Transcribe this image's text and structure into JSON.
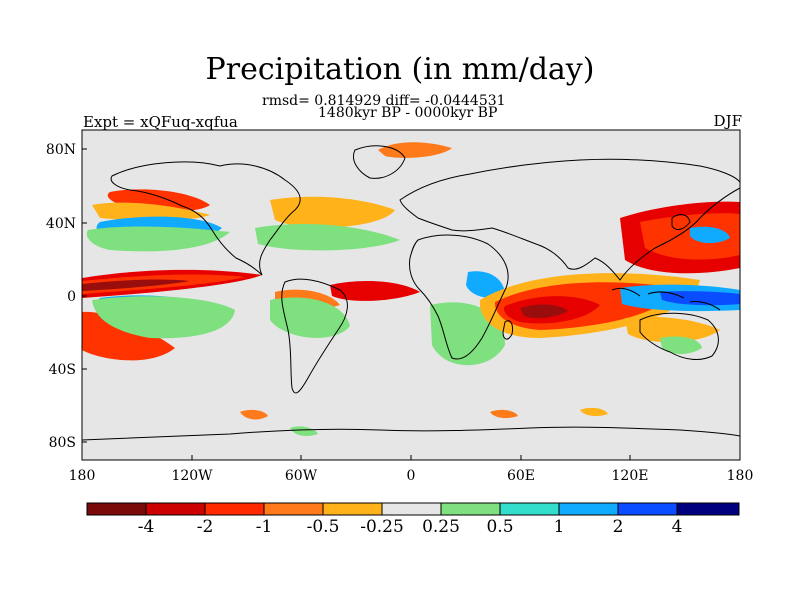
{
  "title": "Precipitation (in mm/day)",
  "stats_line": "rmsd= 0.814929 diff= -0.0444531",
  "period_line": "1480kyr BP - 0000kyr BP",
  "experiment_label": "Expt = xQFuq-xqfua",
  "season_label": "DJF",
  "axes": {
    "x_ticks": [
      "180",
      "120W",
      "60W",
      "0",
      "60E",
      "120E",
      "180"
    ],
    "y_ticks": [
      "80N",
      "40N",
      "0",
      "40S",
      "80S"
    ]
  },
  "colorbar": {
    "labels": [
      "-4",
      "-2",
      "-1",
      "-0.5",
      "-0.25",
      "0.25",
      "0.5",
      "1",
      "2",
      "4"
    ],
    "colors": [
      "#7a0a0a",
      "#cc0000",
      "#ff2a00",
      "#ff7a1a",
      "#ffb21a",
      "#e6e6e6",
      "#7fe07f",
      "#33ddcc",
      "#10aaff",
      "#0a4cff",
      "#00007f"
    ]
  },
  "colors": {
    "neutral": "#e6e6e6",
    "dark_red": "#9a0d0d",
    "red": "#e60000",
    "orange_red": "#ff3300",
    "orange": "#ff7a1a",
    "yellow": "#ffb21a",
    "green": "#7fe07f",
    "cyan": "#33ddcc",
    "light_blue": "#10aaff",
    "blue": "#0a4cff",
    "navy": "#00007f",
    "coast": "#000000"
  }
}
